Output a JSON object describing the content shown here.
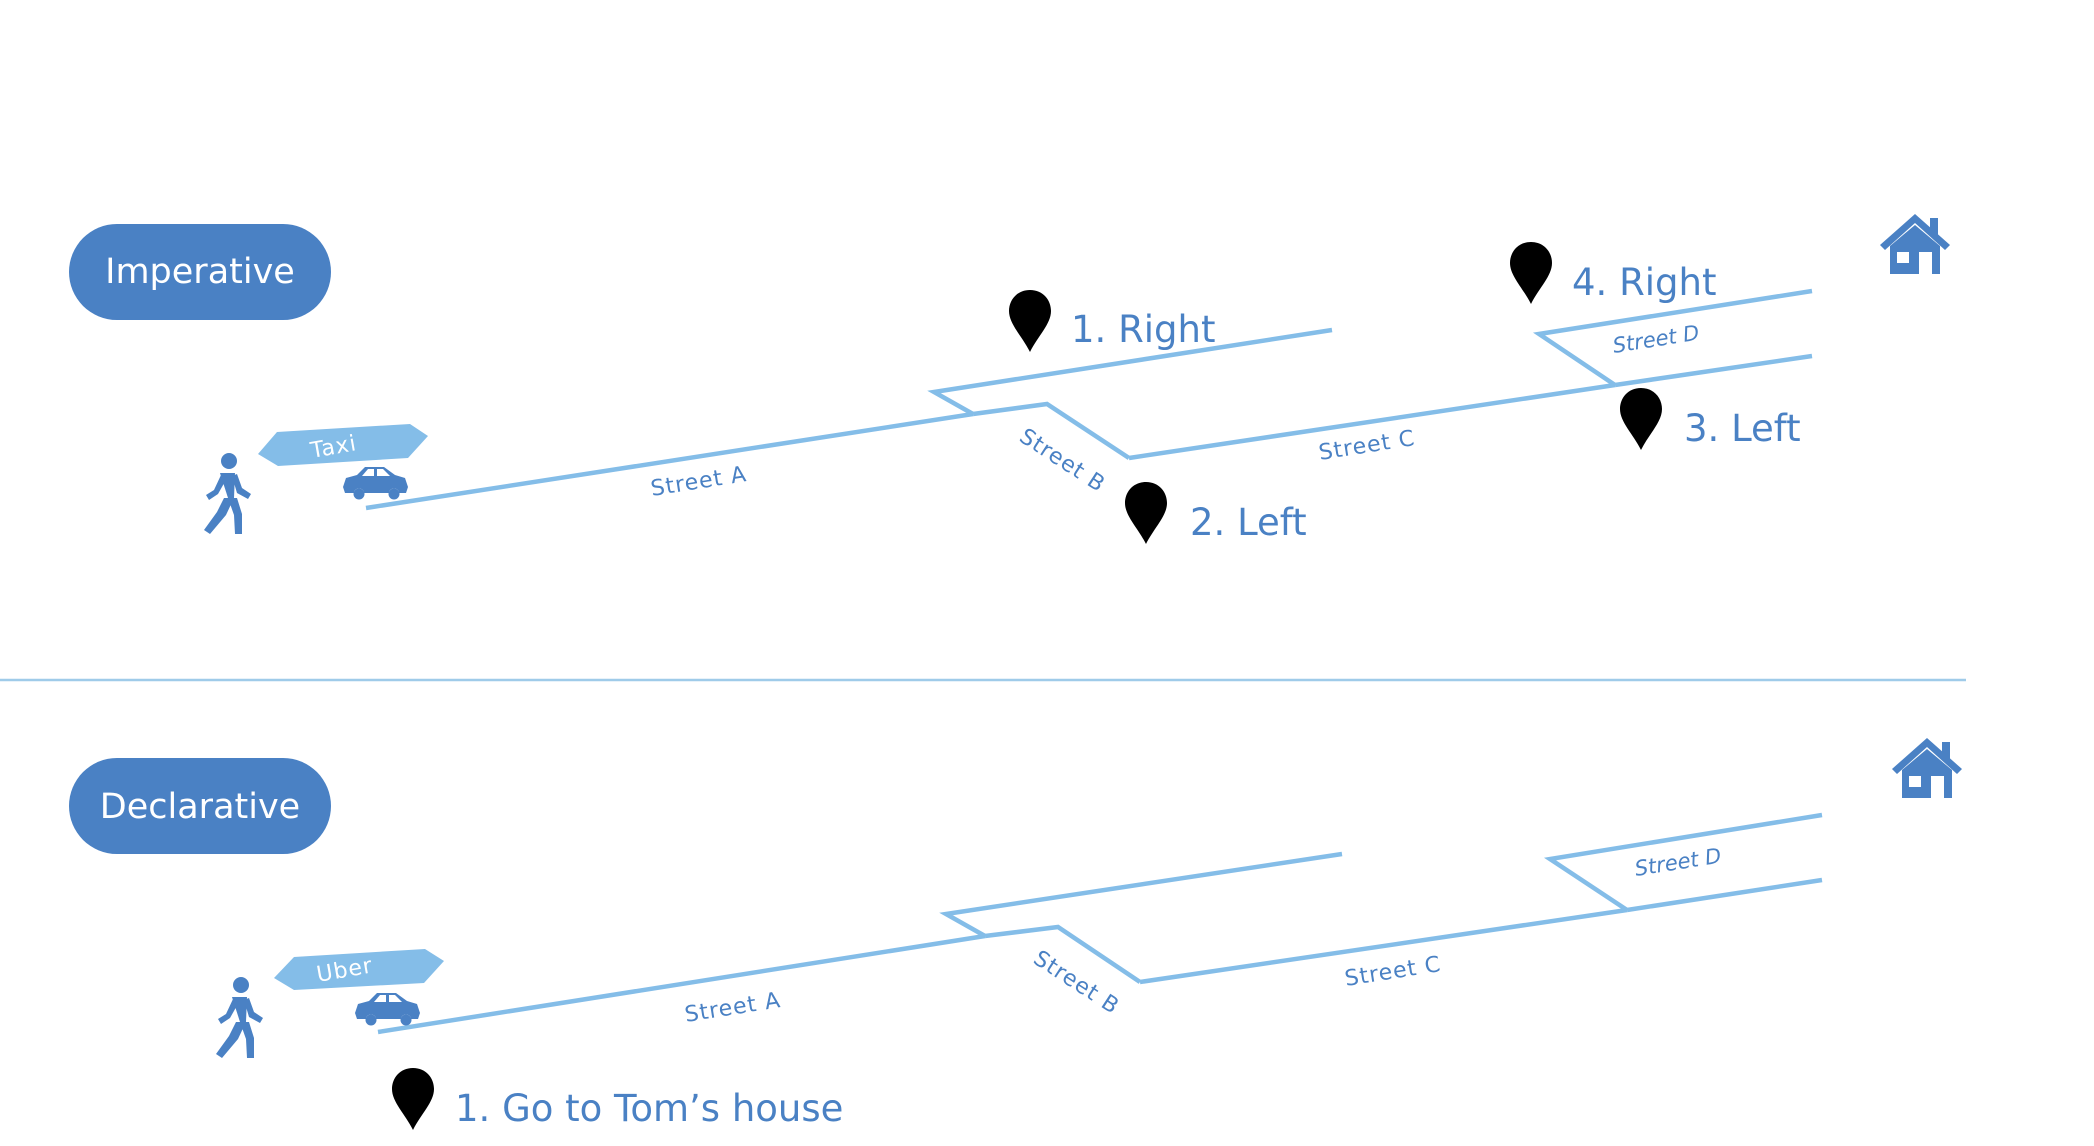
{
  "imperative": {
    "label": "Imperative",
    "vehicle": "Taxi",
    "streets": [
      "Street A",
      "Street B",
      "Street C",
      "Street D"
    ],
    "steps": [
      "1. Right",
      "2. Left",
      "3. Left",
      "4. Right"
    ]
  },
  "declarative": {
    "label": "Declarative",
    "vehicle": "Uber",
    "streets": [
      "Street A",
      "Street B",
      "Street C",
      "Street D"
    ],
    "steps": [
      "1. Go to Tom’s house"
    ]
  },
  "colors": {
    "accent": "#4a81c4",
    "road": "#84bde8",
    "divider": "#9fcbe9"
  },
  "icons": [
    "walking-person-icon",
    "car-icon",
    "map-pin-icon",
    "house-icon"
  ]
}
